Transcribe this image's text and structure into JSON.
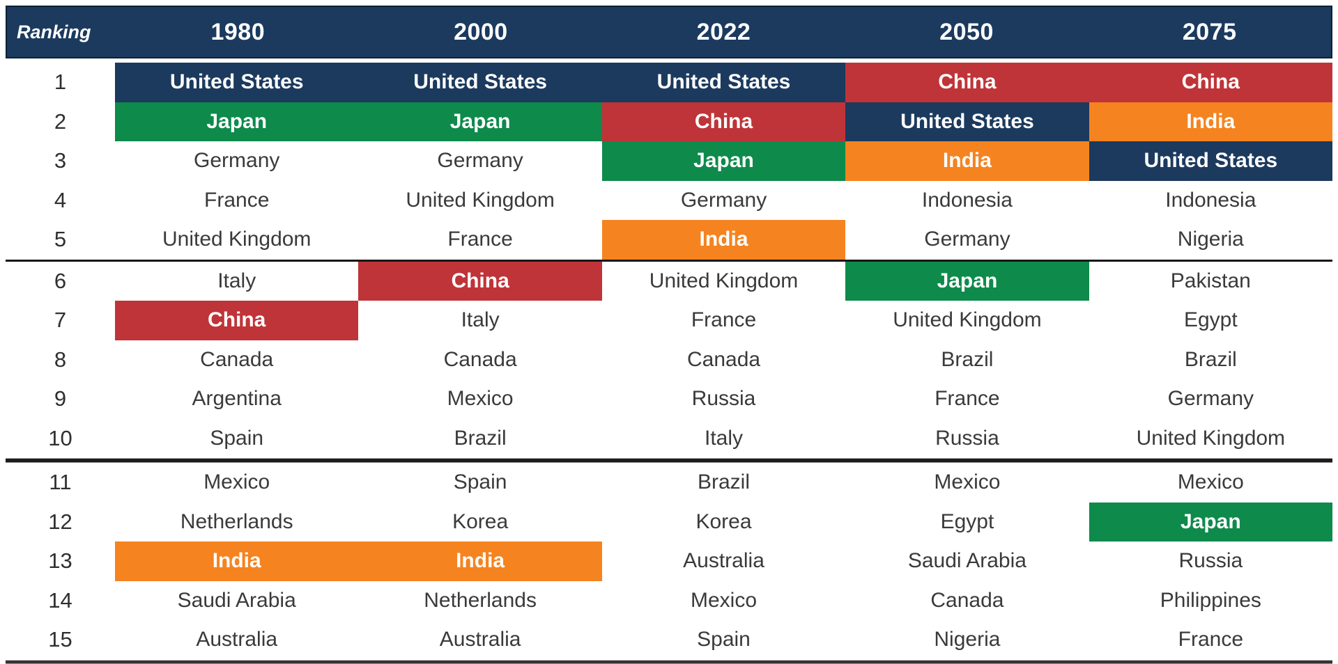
{
  "header": {
    "ranking_label": "Ranking",
    "years": [
      "1980",
      "2000",
      "2022",
      "2050",
      "2075"
    ]
  },
  "colors": {
    "navy": "#1b3a5e",
    "green": "#0e8a4b",
    "red": "#bf3438",
    "orange": "#f5831f"
  },
  "highlight_legend": {
    "United States": "navy",
    "Japan": "green",
    "China": "red",
    "India": "orange"
  },
  "rows": [
    {
      "rank": "1",
      "cells": [
        {
          "c": "United States",
          "hl": "navy"
        },
        {
          "c": "United States",
          "hl": "navy"
        },
        {
          "c": "United States",
          "hl": "navy"
        },
        {
          "c": "China",
          "hl": "red"
        },
        {
          "c": "China",
          "hl": "red"
        }
      ]
    },
    {
      "rank": "2",
      "cells": [
        {
          "c": "Japan",
          "hl": "green"
        },
        {
          "c": "Japan",
          "hl": "green"
        },
        {
          "c": "China",
          "hl": "red"
        },
        {
          "c": "United States",
          "hl": "navy"
        },
        {
          "c": "India",
          "hl": "orange"
        }
      ]
    },
    {
      "rank": "3",
      "cells": [
        {
          "c": "Germany"
        },
        {
          "c": "Germany"
        },
        {
          "c": "Japan",
          "hl": "green"
        },
        {
          "c": "India",
          "hl": "orange"
        },
        {
          "c": "United States",
          "hl": "navy"
        }
      ]
    },
    {
      "rank": "4",
      "cells": [
        {
          "c": "France"
        },
        {
          "c": "United Kingdom"
        },
        {
          "c": "Germany"
        },
        {
          "c": "Indonesia"
        },
        {
          "c": "Indonesia"
        }
      ]
    },
    {
      "rank": "5",
      "cells": [
        {
          "c": "United Kingdom"
        },
        {
          "c": "France"
        },
        {
          "c": "India",
          "hl": "orange"
        },
        {
          "c": "Germany"
        },
        {
          "c": "Nigeria"
        }
      ]
    },
    {
      "rank": "6",
      "cells": [
        {
          "c": "Italy"
        },
        {
          "c": "China",
          "hl": "red"
        },
        {
          "c": "United Kingdom"
        },
        {
          "c": "Japan",
          "hl": "green"
        },
        {
          "c": "Pakistan"
        }
      ]
    },
    {
      "rank": "7",
      "cells": [
        {
          "c": "China",
          "hl": "red"
        },
        {
          "c": "Italy"
        },
        {
          "c": "France"
        },
        {
          "c": "United Kingdom"
        },
        {
          "c": "Egypt"
        }
      ]
    },
    {
      "rank": "8",
      "cells": [
        {
          "c": "Canada"
        },
        {
          "c": "Canada"
        },
        {
          "c": "Canada"
        },
        {
          "c": "Brazil"
        },
        {
          "c": "Brazil"
        }
      ]
    },
    {
      "rank": "9",
      "cells": [
        {
          "c": "Argentina"
        },
        {
          "c": "Mexico"
        },
        {
          "c": "Russia"
        },
        {
          "c": "France"
        },
        {
          "c": "Germany"
        }
      ]
    },
    {
      "rank": "10",
      "cells": [
        {
          "c": "Spain"
        },
        {
          "c": "Brazil"
        },
        {
          "c": "Italy"
        },
        {
          "c": "Russia"
        },
        {
          "c": "United Kingdom"
        }
      ]
    },
    {
      "rank": "11",
      "cells": [
        {
          "c": "Mexico"
        },
        {
          "c": "Spain"
        },
        {
          "c": "Brazil"
        },
        {
          "c": "Mexico"
        },
        {
          "c": "Mexico"
        }
      ]
    },
    {
      "rank": "12",
      "cells": [
        {
          "c": "Netherlands"
        },
        {
          "c": "Korea"
        },
        {
          "c": "Korea"
        },
        {
          "c": "Egypt"
        },
        {
          "c": "Japan",
          "hl": "green"
        }
      ]
    },
    {
      "rank": "13",
      "cells": [
        {
          "c": "India",
          "hl": "orange"
        },
        {
          "c": "India",
          "hl": "orange"
        },
        {
          "c": "Australia"
        },
        {
          "c": "Saudi Arabia"
        },
        {
          "c": "Russia"
        }
      ]
    },
    {
      "rank": "14",
      "cells": [
        {
          "c": "Saudi Arabia"
        },
        {
          "c": "Netherlands"
        },
        {
          "c": "Mexico"
        },
        {
          "c": "Canada"
        },
        {
          "c": "Philippines"
        }
      ]
    },
    {
      "rank": "15",
      "cells": [
        {
          "c": "Australia"
        },
        {
          "c": "Australia"
        },
        {
          "c": "Spain"
        },
        {
          "c": "Nigeria"
        },
        {
          "c": "France"
        }
      ]
    }
  ],
  "dividers_after_ranks": [
    "5",
    "10",
    "15"
  ],
  "chart_data": {
    "type": "table",
    "title": "Ranking",
    "columns": [
      "Ranking",
      "1980",
      "2000",
      "2022",
      "2050",
      "2075"
    ],
    "rows": [
      [
        "1",
        "United States",
        "United States",
        "United States",
        "China",
        "China"
      ],
      [
        "2",
        "Japan",
        "Japan",
        "China",
        "United States",
        "India"
      ],
      [
        "3",
        "Germany",
        "Germany",
        "Japan",
        "India",
        "United States"
      ],
      [
        "4",
        "France",
        "United Kingdom",
        "Germany",
        "Indonesia",
        "Indonesia"
      ],
      [
        "5",
        "United Kingdom",
        "France",
        "India",
        "Germany",
        "Nigeria"
      ],
      [
        "6",
        "Italy",
        "China",
        "United Kingdom",
        "Japan",
        "Pakistan"
      ],
      [
        "7",
        "China",
        "Italy",
        "France",
        "United Kingdom",
        "Egypt"
      ],
      [
        "8",
        "Canada",
        "Canada",
        "Canada",
        "Brazil",
        "Brazil"
      ],
      [
        "9",
        "Argentina",
        "Mexico",
        "Russia",
        "France",
        "Germany"
      ],
      [
        "10",
        "Spain",
        "Brazil",
        "Italy",
        "Russia",
        "United Kingdom"
      ],
      [
        "11",
        "Mexico",
        "Spain",
        "Brazil",
        "Mexico",
        "Mexico"
      ],
      [
        "12",
        "Netherlands",
        "Korea",
        "Korea",
        "Egypt",
        "Japan"
      ],
      [
        "13",
        "India",
        "India",
        "Australia",
        "Saudi Arabia",
        "Russia"
      ],
      [
        "14",
        "Saudi Arabia",
        "Netherlands",
        "Mexico",
        "Canada",
        "Philippines"
      ],
      [
        "15",
        "Australia",
        "Australia",
        "Spain",
        "Nigeria",
        "France"
      ]
    ],
    "highlighted_countries": {
      "United States": "#1b3a5e",
      "Japan": "#0e8a4b",
      "China": "#bf3438",
      "India": "#f5831f"
    },
    "layout": {
      "header_background": "#1b3a5e",
      "header_text_color": "#ffffff",
      "group_divider_after_rows": [
        5,
        10,
        15
      ]
    }
  }
}
